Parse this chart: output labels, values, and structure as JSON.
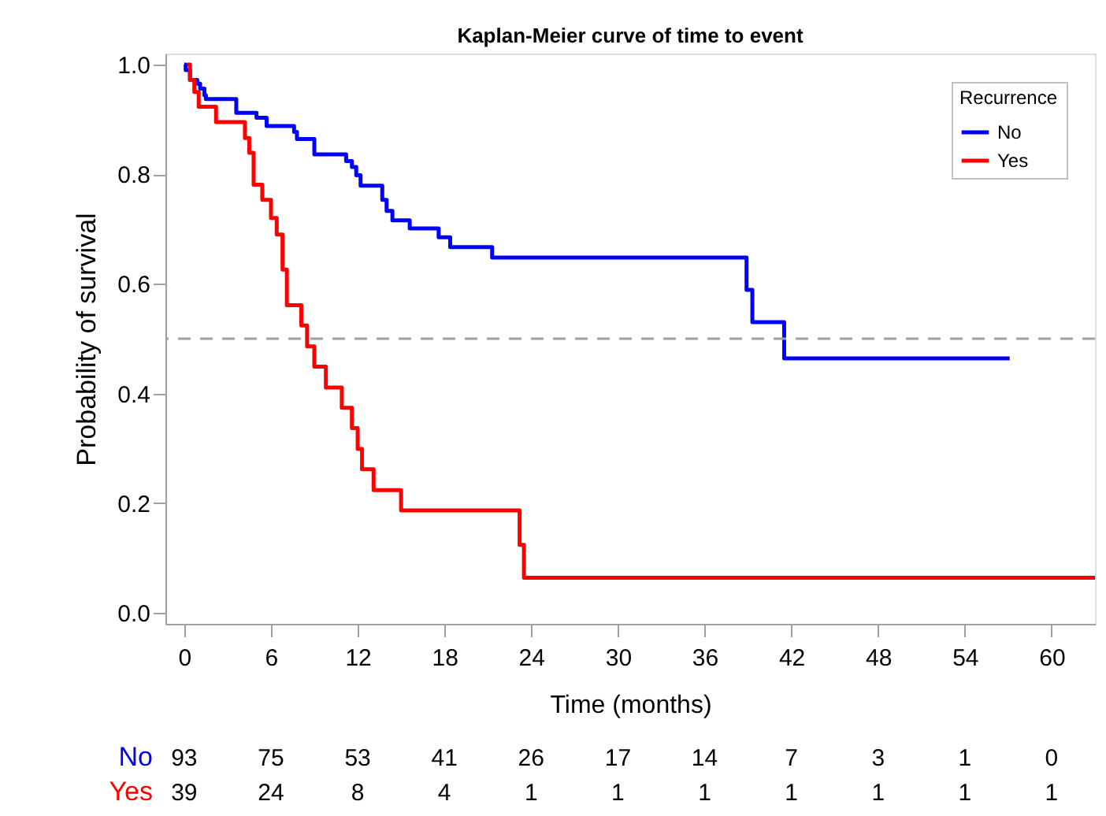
{
  "chart_data": {
    "type": "step",
    "title": "Kaplan-Meier curve of time to event",
    "xlabel": "Time (months)",
    "ylabel": "Probability of survival",
    "legend_title": "Recurrence",
    "legend": "top right",
    "grid": false,
    "marker": "none",
    "line_style": "solid",
    "xlim": [
      -1.3,
      63
    ],
    "ylim": [
      -0.02,
      1.02
    ],
    "xticks": [
      0,
      6,
      12,
      18,
      24,
      30,
      36,
      42,
      48,
      54,
      60
    ],
    "yticks": [
      {
        "value": 0,
        "label": "0.0"
      },
      {
        "value": 0.2,
        "label": "0.2"
      },
      {
        "value": 0.4,
        "label": "0.4"
      },
      {
        "value": 0.6,
        "label": "0.6"
      },
      {
        "value": 0.8,
        "label": "0.8"
      },
      {
        "value": 1,
        "label": "1.0"
      }
    ],
    "series": [
      {
        "name": "No",
        "color": "#0000ff",
        "x": [
          0,
          0.1,
          0.4,
          0.9,
          1.1,
          1.4,
          1.5,
          3.6,
          5.0,
          5.7,
          7.6,
          7.8,
          9.0,
          11.2,
          11.6,
          11.9,
          12.2,
          13.7,
          14.0,
          14.4,
          15.6,
          17.6,
          18.4,
          21.3,
          38.9,
          39.3,
          41.5,
          57.1
        ],
        "values": [
          1.0,
          0.99,
          0.972,
          0.965,
          0.956,
          0.944,
          0.937,
          0.912,
          0.903,
          0.888,
          0.877,
          0.864,
          0.836,
          0.824,
          0.813,
          0.798,
          0.779,
          0.753,
          0.733,
          0.716,
          0.701,
          0.685,
          0.667,
          0.648,
          0.589,
          0.53,
          0.464,
          0.464
        ]
      },
      {
        "name": "Yes",
        "color": "#ff0000",
        "x": [
          0.2,
          0.4,
          0.7,
          1.0,
          2.2,
          4.2,
          4.5,
          4.8,
          5.4,
          6.0,
          6.4,
          6.8,
          7.1,
          8.1,
          8.5,
          9.0,
          9.8,
          10.9,
          11.6,
          12.0,
          12.3,
          13.1,
          15.0,
          23.2,
          23.5,
          63
        ],
        "values": [
          1.0,
          0.972,
          0.95,
          0.923,
          0.895,
          0.866,
          0.839,
          0.781,
          0.753,
          0.72,
          0.69,
          0.626,
          0.561,
          0.524,
          0.486,
          0.449,
          0.411,
          0.374,
          0.337,
          0.299,
          0.262,
          0.224,
          0.187,
          0.124,
          0.064,
          0.064
        ]
      }
    ],
    "ref_lines": [
      {
        "axis": "y",
        "value": 0.5,
        "color": "#a0a0a0",
        "line_style": "dashed"
      }
    ],
    "annotations": [
      "No",
      "93",
      "75",
      "53",
      "41",
      "26",
      "17",
      "14",
      "7",
      "3",
      "1",
      "0",
      "Yes",
      "39",
      "24",
      "8",
      "4",
      "1",
      "1",
      "1",
      "1",
      "1",
      "1",
      "1"
    ]
  }
}
